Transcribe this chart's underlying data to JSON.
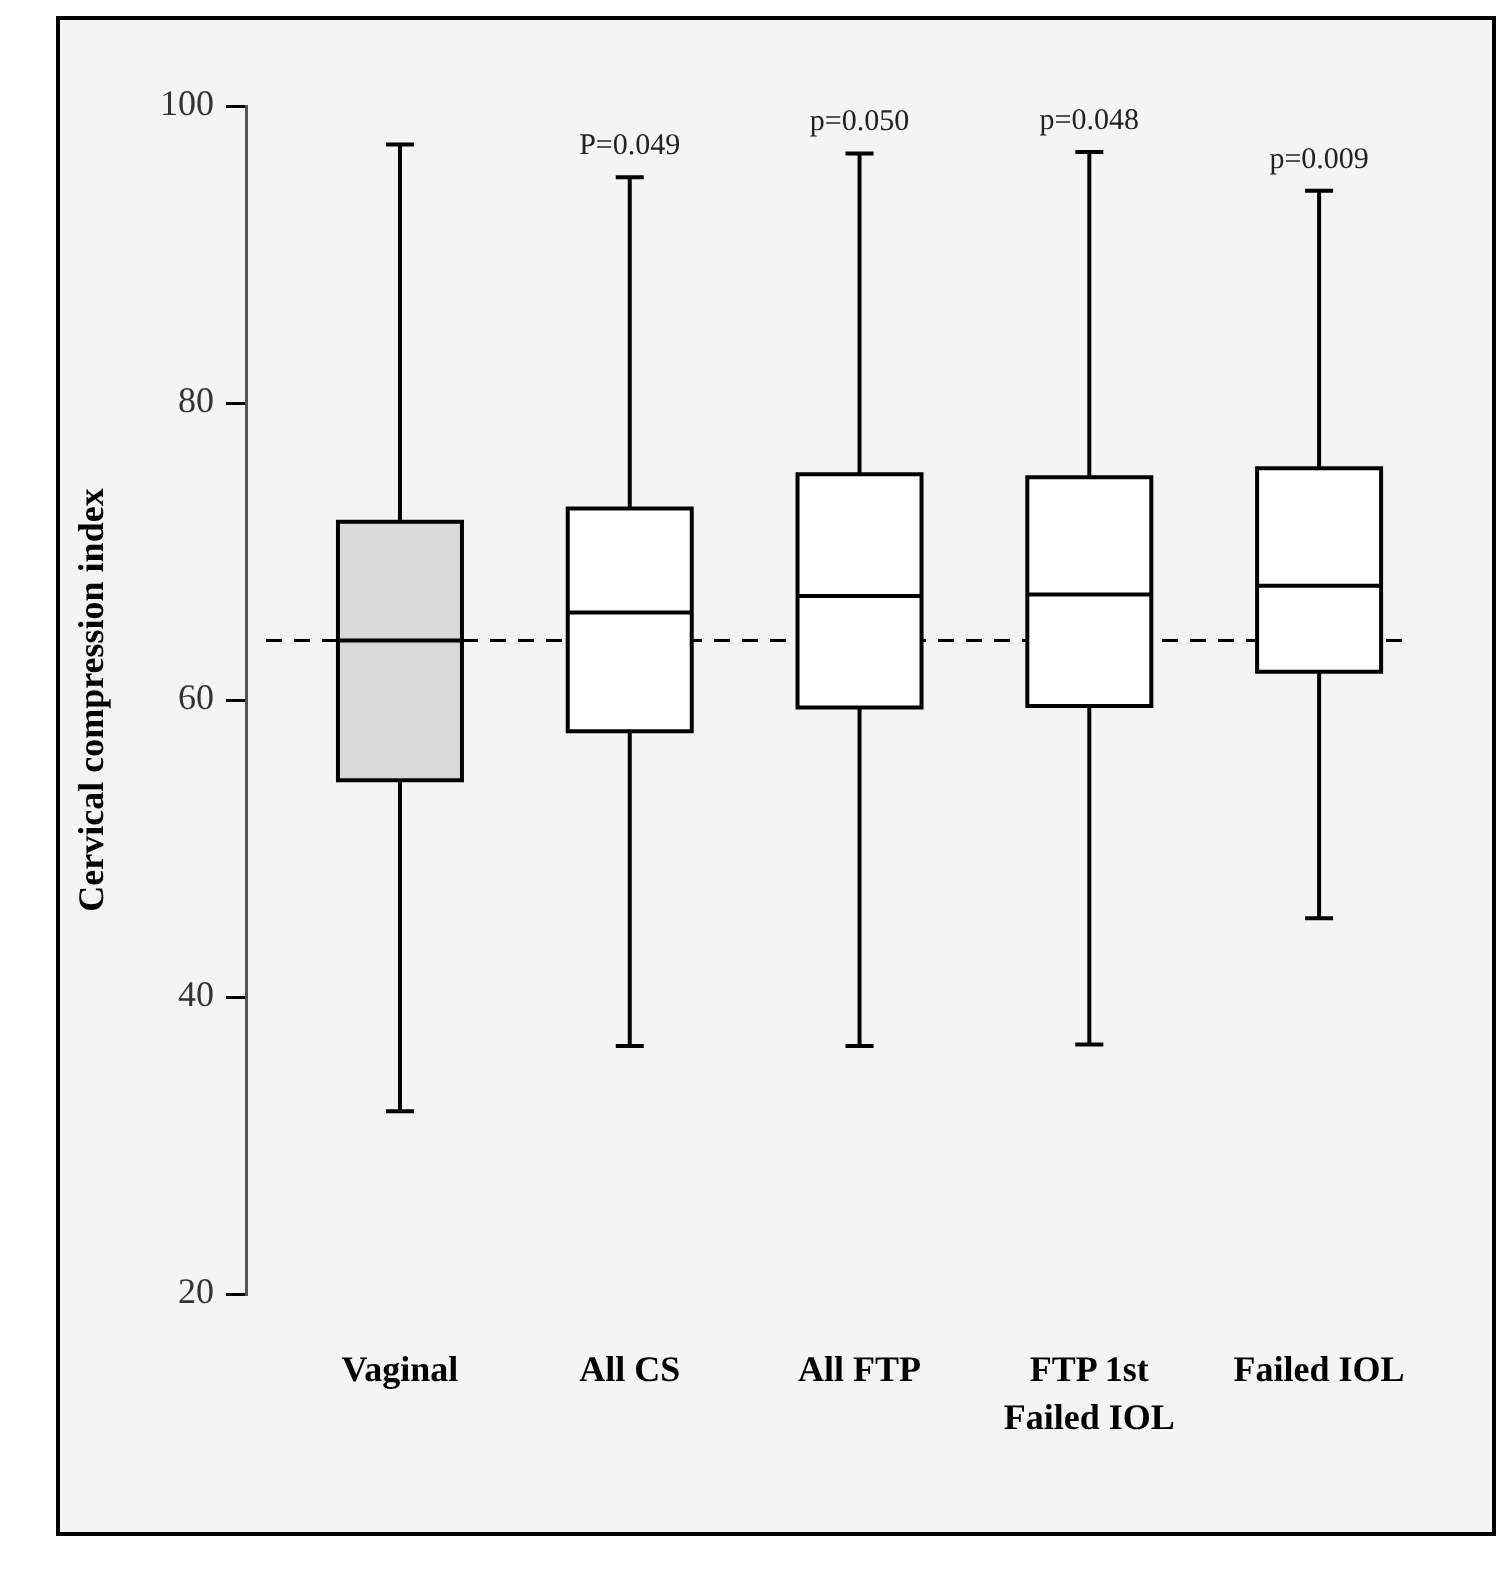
{
  "chart_data": {
    "type": "box",
    "ylabel": "Cervical compression index",
    "categories": [
      "Vaginal",
      "All CS",
      "All FTP",
      "FTP 1st\nFailed IOL",
      "Failed IOL"
    ],
    "colors": [
      "#d9d9d9",
      "#ffffff",
      "#ffffff",
      "#ffffff",
      "#ffffff"
    ],
    "boxes": [
      {
        "low": 32.3,
        "q1": 54.6,
        "median": 64.0,
        "q3": 72.0,
        "high": 97.4
      },
      {
        "low": 36.7,
        "q1": 57.9,
        "median": 65.9,
        "q3": 72.9,
        "high": 95.2
      },
      {
        "low": 36.7,
        "q1": 59.5,
        "median": 67.0,
        "q3": 75.2,
        "high": 96.8
      },
      {
        "low": 36.8,
        "q1": 59.6,
        "median": 67.1,
        "q3": 75.0,
        "high": 96.9
      },
      {
        "low": 45.3,
        "q1": 61.9,
        "median": 67.7,
        "q3": 75.6,
        "high": 94.3
      }
    ],
    "ylim": [
      20,
      100
    ],
    "yticks": [
      20,
      40,
      60,
      80,
      100
    ],
    "grid": false,
    "ref_lines": [
      {
        "axis": "y",
        "value": 64.0,
        "line_style": "dashed",
        "color": "#000000"
      }
    ],
    "annotations": [
      {
        "text": "P=0.049",
        "x": "All CS",
        "y": 95.2
      },
      {
        "text": "p=0.050",
        "x": "All FTP",
        "y": 96.8
      },
      {
        "text": "p=0.048",
        "x": "FTP 1st\nFailed IOL",
        "y": 96.9
      },
      {
        "text": "p=0.009",
        "x": "Failed IOL",
        "y": 94.3
      }
    ]
  }
}
